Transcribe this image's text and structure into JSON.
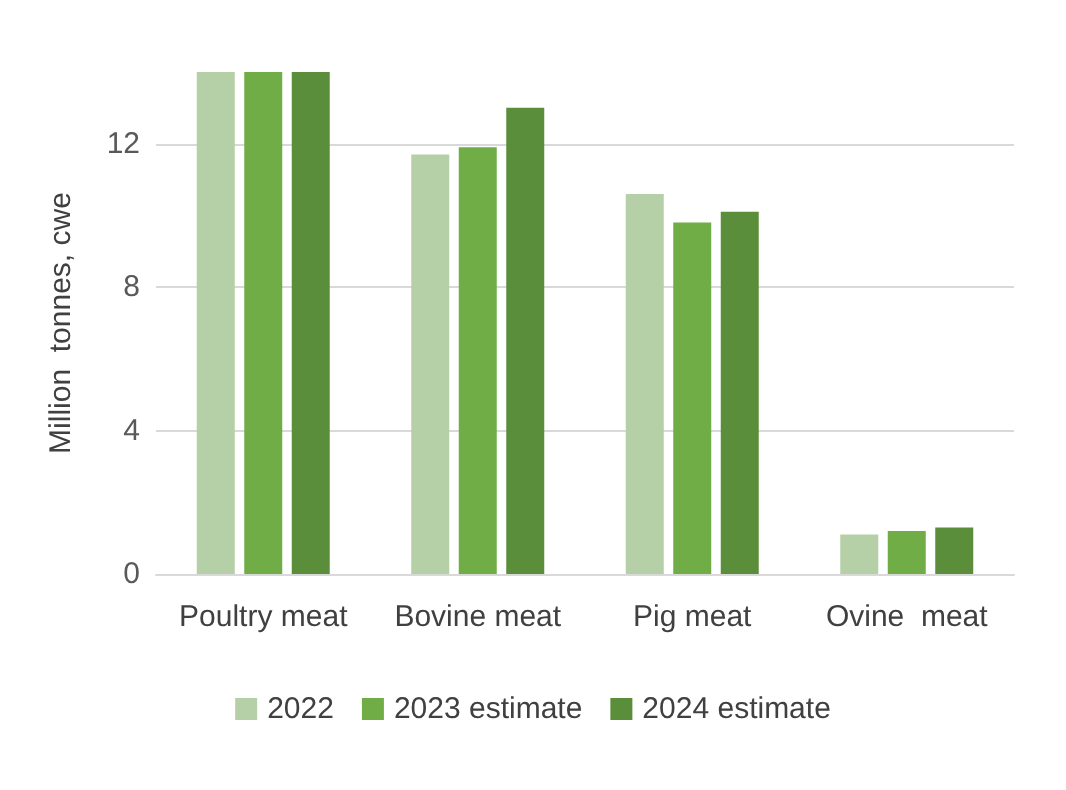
{
  "chart_data": {
    "type": "bar",
    "ylabel": "Million  tonnes, cwe",
    "categories": [
      "Poultry meat",
      "Bovine meat",
      "Pig meat",
      "Ovine  meat"
    ],
    "series": [
      {
        "name": "2022",
        "color": "#b5cfa6",
        "values": [
          14,
          11.7,
          10.6,
          1.1
        ]
      },
      {
        "name": "2023 estimate",
        "color": "#70ad47",
        "values": [
          14,
          11.9,
          9.8,
          1.2
        ]
      },
      {
        "name": "2024 estimate",
        "color": "#5b8e3a",
        "values": [
          14,
          13,
          10.1,
          1.3
        ]
      }
    ],
    "ylim": [
      0,
      14
    ],
    "yticks": [
      0,
      4,
      8,
      12
    ],
    "grid": "y",
    "legend": "bottom"
  }
}
